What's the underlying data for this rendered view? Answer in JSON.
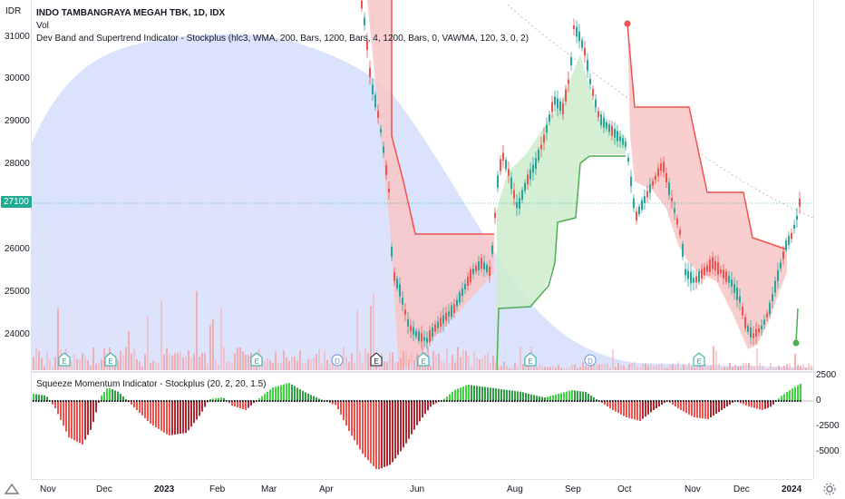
{
  "currency": "IDR",
  "legend": {
    "symbol": "INDO TAMBANGRAYA MEGAH TBK, 1D, IDX",
    "volume": "Vol",
    "indicator": "Dev Band and Supertrend Indicator - Stockplus  (hlc3, WMA, 200, Bars, 1200, Bars, 4, 1200, Bars, 0, VAWMA, 120, 3, 0, 2)"
  },
  "oscillator_legend": "Squeeze Momentum Indicator - Stockplus (20, 2, 20, 1.5)",
  "current_price": "27100",
  "price_axis": [
    "31000",
    "30000",
    "29000",
    "28000",
    "26000",
    "25000",
    "24000"
  ],
  "osc_axis": [
    "2500",
    "0",
    "-2500",
    "-5000"
  ],
  "time_axis": [
    {
      "label": "Nov",
      "bold": false
    },
    {
      "label": "Dec",
      "bold": false
    },
    {
      "label": "2023",
      "bold": true
    },
    {
      "label": "Feb",
      "bold": false
    },
    {
      "label": "Mar",
      "bold": false
    },
    {
      "label": "Apr",
      "bold": false
    },
    {
      "label": "Jun",
      "bold": false
    },
    {
      "label": "Aug",
      "bold": false
    },
    {
      "label": "Sep",
      "bold": false
    },
    {
      "label": "Oct",
      "bold": false
    },
    {
      "label": "Nov",
      "bold": false
    },
    {
      "label": "Dec",
      "bold": false
    },
    {
      "label": "2024",
      "bold": true
    }
  ],
  "event_markers": [
    "E",
    "E",
    "E",
    "D",
    "E",
    "E",
    "E",
    "D",
    "E"
  ],
  "colors": {
    "up": "#26a69a",
    "down": "#ef5350",
    "band_red": "#f8c6c6",
    "band_green": "#cdeccd",
    "cloud": "#cfd8fb",
    "price_line": "#22ab94"
  },
  "icons": {
    "settings": "gear-icon",
    "logo": "tradingview-logo-icon"
  }
}
